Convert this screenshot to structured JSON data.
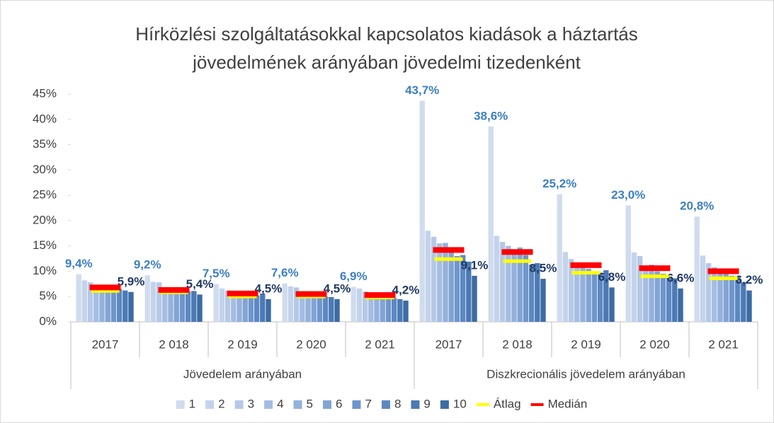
{
  "chart_data": {
    "type": "bar",
    "title": "Hírközlési szolgáltatásokkal kapcsolatos kiadások a háztartás jövedelmének arányában jövedelmi tizedenként",
    "categories": [
      "2017",
      "2 018",
      "2 019",
      "2 020",
      "2 021",
      "2017",
      "2 018",
      "2 019",
      "2 020",
      "2 021"
    ],
    "category_groups": [
      "Jövedelem arányában",
      "Jövedelem arányában",
      "Jövedelem arányában",
      "Jövedelem arányában",
      "Jövedelem arányában",
      "Diszkrecionális jövedelem arányában",
      "Diszkrecionális jövedelem arányában",
      "Diszkrecionális jövedelem arányában",
      "Diszkrecionális jövedelem arányában",
      "Diszkrecionális jövedelem arányában"
    ],
    "ylim": [
      0,
      45
    ],
    "yticks": [
      {
        "value": 0,
        "label": "0%"
      },
      {
        "value": 5,
        "label": "5%"
      },
      {
        "value": 10,
        "label": "10%"
      },
      {
        "value": 15,
        "label": "15%"
      },
      {
        "value": 20,
        "label": "20%"
      },
      {
        "value": 25,
        "label": "25%"
      },
      {
        "value": 30,
        "label": "30%"
      },
      {
        "value": 35,
        "label": "35%"
      },
      {
        "value": 40,
        "label": "40%"
      },
      {
        "value": 45,
        "label": "45%"
      }
    ],
    "grid": false,
    "legend": "bottom",
    "series": [
      {
        "name": "1",
        "color": "#d0dcee",
        "label_color": "#3c7fc1",
        "values": [
          9.4,
          9.2,
          7.5,
          7.6,
          6.9,
          43.7,
          38.6,
          25.2,
          23.0,
          20.8
        ],
        "value_labels": [
          "9,4%",
          "9,2%",
          "7,5%",
          "7,6%",
          "6,9%",
          "43,7%",
          "38,6%",
          "25,2%",
          "23,0%",
          "20,8%"
        ]
      },
      {
        "name": "2",
        "color": "#c3d3eb",
        "values": [
          8.2,
          7.9,
          6.6,
          7.0,
          6.6,
          18.0,
          17.0,
          13.8,
          13.7,
          13.1
        ]
      },
      {
        "name": "3",
        "color": "#b5c9e6",
        "values": [
          7.8,
          7.8,
          6.2,
          6.8,
          6.0,
          16.8,
          15.8,
          12.4,
          13.0,
          11.6
        ]
      },
      {
        "name": "4",
        "color": "#a5bde1",
        "values": [
          7.3,
          6.8,
          5.8,
          5.9,
          5.5,
          15.5,
          15.0,
          11.5,
          11.0,
          10.8
        ]
      },
      {
        "name": "5",
        "color": "#94b1db",
        "values": [
          7.3,
          6.5,
          5.5,
          5.6,
          5.2,
          15.6,
          14.0,
          11.0,
          11.3,
          10.0
        ]
      },
      {
        "name": "6",
        "color": "#82a4d4",
        "values": [
          7.3,
          6.3,
          5.2,
          5.3,
          5.0,
          14.0,
          14.7,
          10.5,
          10.0,
          9.6
        ]
      },
      {
        "name": "7",
        "color": "#6f96cc",
        "values": [
          7.0,
          6.0,
          5.0,
          5.2,
          4.9,
          13.0,
          13.2,
          9.8,
          9.5,
          9.1
        ]
      },
      {
        "name": "8",
        "color": "#5d88c2",
        "values": [
          6.5,
          6.0,
          5.2,
          5.0,
          4.7,
          13.2,
          11.3,
          9.5,
          8.7,
          9.0
        ]
      },
      {
        "name": "9",
        "color": "#4c7ab5",
        "values": [
          6.2,
          6.1,
          5.6,
          4.9,
          4.5,
          11.9,
          11.6,
          10.2,
          8.6,
          7.8
        ]
      },
      {
        "name": "10",
        "color": "#3d6ba3",
        "label_color": "#203864",
        "values": [
          5.9,
          5.4,
          4.5,
          4.5,
          4.2,
          9.1,
          8.5,
          6.8,
          6.6,
          6.2
        ],
        "value_labels": [
          "5,9%",
          "5,4%",
          "4,5%",
          "4,5%",
          "4,2%",
          "9,1%",
          "8,5%",
          "6,8%",
          "6,6%",
          "6,2%"
        ]
      },
      {
        "name": "Átlag",
        "type": "marker",
        "color": "#ffff00",
        "values": [
          6.1,
          5.8,
          5.0,
          5.0,
          4.8,
          12.4,
          12.0,
          9.7,
          9.0,
          8.6
        ]
      },
      {
        "name": "Medián",
        "type": "marker",
        "color": "#ff0000",
        "values": [
          6.8,
          6.3,
          5.6,
          5.5,
          5.3,
          14.2,
          13.8,
          11.2,
          10.6,
          10.0
        ]
      }
    ]
  }
}
